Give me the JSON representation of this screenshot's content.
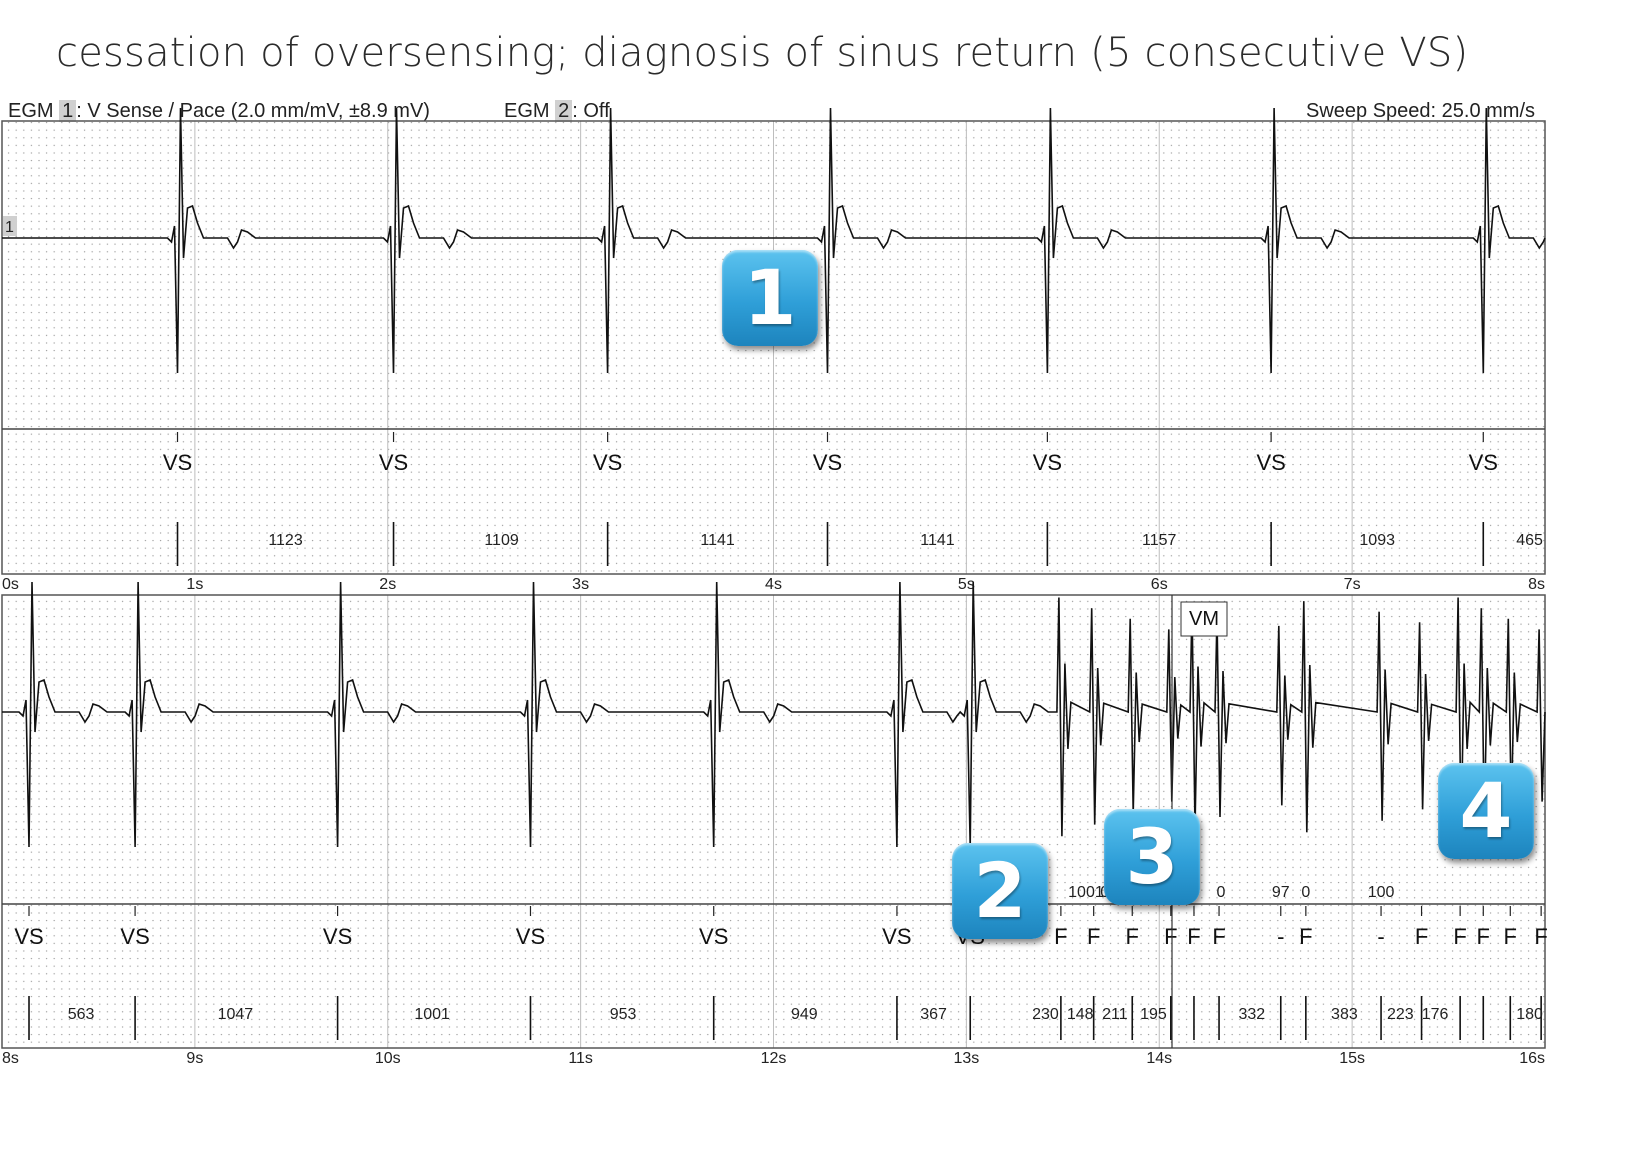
{
  "title": "cessation of oversensing; diagnosis of sinus return (5 consecutive VS)",
  "header": {
    "egm1_prefix": "EGM",
    "egm1_num": "1",
    "egm1_desc": ": V Sense / Pace (2.0 mm/mV, ±8.9 mV)",
    "egm2_prefix": "EGM",
    "egm2_num": "2",
    "egm2_desc": ": Off",
    "sweep": "Sweep Speed: 25.0 mm/s"
  },
  "markers": [
    "1",
    "2",
    "3",
    "4"
  ],
  "colors": {
    "trace": "#111111",
    "grid_dot": "#9a9a9a",
    "grid_line": "#555555",
    "marker": "#2f9fd8"
  },
  "chart_data": [
    {
      "type": "line",
      "xlabel": "",
      "xlim": [
        0,
        8
      ],
      "x_ticks": [
        "0s",
        "1s",
        "2s",
        "3s",
        "4s",
        "5s",
        "6s",
        "7s",
        "8s"
      ],
      "channel_label": "1",
      "events": [
        {
          "t": 0.91,
          "label": "VS"
        },
        {
          "t": 2.03,
          "label": "VS"
        },
        {
          "t": 3.14,
          "label": "VS"
        },
        {
          "t": 4.28,
          "label": "VS"
        },
        {
          "t": 5.42,
          "label": "VS"
        },
        {
          "t": 6.58,
          "label": "VS"
        },
        {
          "t": 7.68,
          "label": "VS"
        }
      ],
      "intervals": [
        {
          "t": 1.47,
          "value": "1123"
        },
        {
          "t": 2.59,
          "value": "1109"
        },
        {
          "t": 3.71,
          "value": "1141"
        },
        {
          "t": 4.85,
          "value": "1141"
        },
        {
          "t": 6.0,
          "value": "1157"
        },
        {
          "t": 7.13,
          "value": "1093"
        },
        {
          "t": 7.92,
          "value": "465"
        }
      ]
    },
    {
      "type": "line",
      "xlabel": "",
      "xlim": [
        8,
        16
      ],
      "x_ticks": [
        "8s",
        "9s",
        "10s",
        "11s",
        "12s",
        "13s",
        "14s",
        "15s",
        "16s"
      ],
      "annotation": "VM",
      "events": [
        {
          "t": 8.14,
          "label": "VS"
        },
        {
          "t": 8.69,
          "label": "VS"
        },
        {
          "t": 9.74,
          "label": "VS"
        },
        {
          "t": 10.74,
          "label": "VS"
        },
        {
          "t": 11.69,
          "label": "VS"
        },
        {
          "t": 12.64,
          "label": "VS"
        },
        {
          "t": 13.02,
          "label": "VS"
        },
        {
          "t": 13.49,
          "label": "F"
        },
        {
          "t": 13.66,
          "label": "F"
        },
        {
          "t": 13.86,
          "label": "F"
        },
        {
          "t": 14.06,
          "label": "F"
        },
        {
          "t": 14.18,
          "label": "F"
        },
        {
          "t": 14.31,
          "label": "F"
        },
        {
          "t": 14.63,
          "label": "-"
        },
        {
          "t": 14.76,
          "label": "F"
        },
        {
          "t": 15.15,
          "label": "-"
        },
        {
          "t": 15.36,
          "label": "F"
        },
        {
          "t": 15.56,
          "label": "F"
        },
        {
          "t": 15.68,
          "label": "F"
        },
        {
          "t": 15.82,
          "label": "F"
        },
        {
          "t": 15.98,
          "label": "F"
        }
      ],
      "intervals": [
        {
          "t": 8.41,
          "value": "563"
        },
        {
          "t": 9.21,
          "value": "1047"
        },
        {
          "t": 10.23,
          "value": "1001"
        },
        {
          "t": 11.22,
          "value": "953"
        },
        {
          "t": 12.16,
          "value": "949"
        },
        {
          "t": 12.83,
          "value": "367"
        },
        {
          "t": 13.41,
          "value": "230"
        },
        {
          "t": 13.59,
          "value": "148"
        },
        {
          "t": 13.77,
          "value": "211"
        },
        {
          "t": 13.97,
          "value": "195"
        },
        {
          "t": 14.48,
          "value": "332"
        },
        {
          "t": 14.96,
          "value": "383"
        },
        {
          "t": 15.25,
          "value": "223"
        },
        {
          "t": 15.43,
          "value": "176"
        },
        {
          "t": 15.92,
          "value": "180"
        }
      ],
      "upper_values": [
        {
          "t": 13.62,
          "value": "1001"
        },
        {
          "t": 13.74,
          "value": "00"
        },
        {
          "t": 14.32,
          "value": "0"
        },
        {
          "t": 14.63,
          "value": "97"
        },
        {
          "t": 14.76,
          "value": "0"
        },
        {
          "t": 15.15,
          "value": "100"
        }
      ]
    }
  ]
}
